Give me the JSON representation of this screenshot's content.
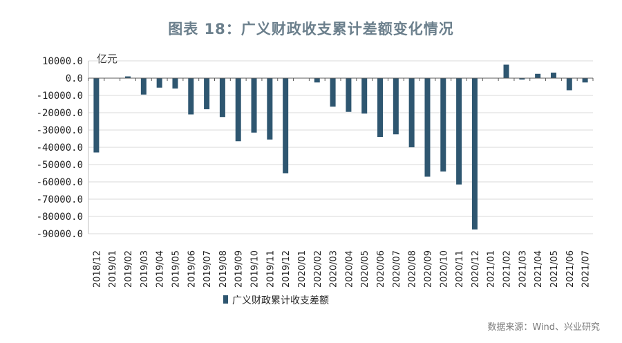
{
  "chart_data": {
    "type": "bar",
    "title": "图表 18：广义财政收支累计差额变化情况",
    "unit": "亿元",
    "source": "数据来源：Wind、兴业研究",
    "ylim": [
      -90000,
      10000
    ],
    "yticks": [
      10000,
      0,
      -10000,
      -20000,
      -30000,
      -40000,
      -50000,
      -60000,
      -70000,
      -80000,
      -90000
    ],
    "ytick_labels": [
      "10000.0",
      "0.0",
      "-10000.0",
      "-20000.0",
      "-30000.0",
      "-40000.0",
      "-50000.0",
      "-60000.0",
      "-70000.0",
      "-80000.0",
      "-90000.0"
    ],
    "grid": true,
    "legend_position": "bottom-left",
    "color": "#2e5670",
    "categories": [
      "2018/12",
      "2019/01",
      "2019/02",
      "2019/03",
      "2019/04",
      "2019/05",
      "2019/06",
      "2019/07",
      "2019/08",
      "2019/09",
      "2019/10",
      "2019/11",
      "2019/12",
      "2020/01",
      "2020/02",
      "2020/03",
      "2020/04",
      "2020/05",
      "2020/06",
      "2020/07",
      "2020/08",
      "2020/09",
      "2020/10",
      "2020/11",
      "2020/12",
      "2021/01",
      "2021/02",
      "2021/03",
      "2021/04",
      "2021/05",
      "2021/06",
      "2021/07"
    ],
    "series": [
      {
        "name": "广义财政累计收支差额",
        "values": [
          -43000,
          0,
          1000,
          -9500,
          -5500,
          -6000,
          -21000,
          -18000,
          -22500,
          -36500,
          -31500,
          -35500,
          -55000,
          0,
          -2500,
          -16500,
          -19500,
          -20500,
          -34000,
          -32500,
          -40000,
          -57000,
          -54000,
          -61500,
          -87500,
          0,
          7800,
          -800,
          2500,
          3200,
          -7000,
          -2500
        ]
      }
    ]
  }
}
